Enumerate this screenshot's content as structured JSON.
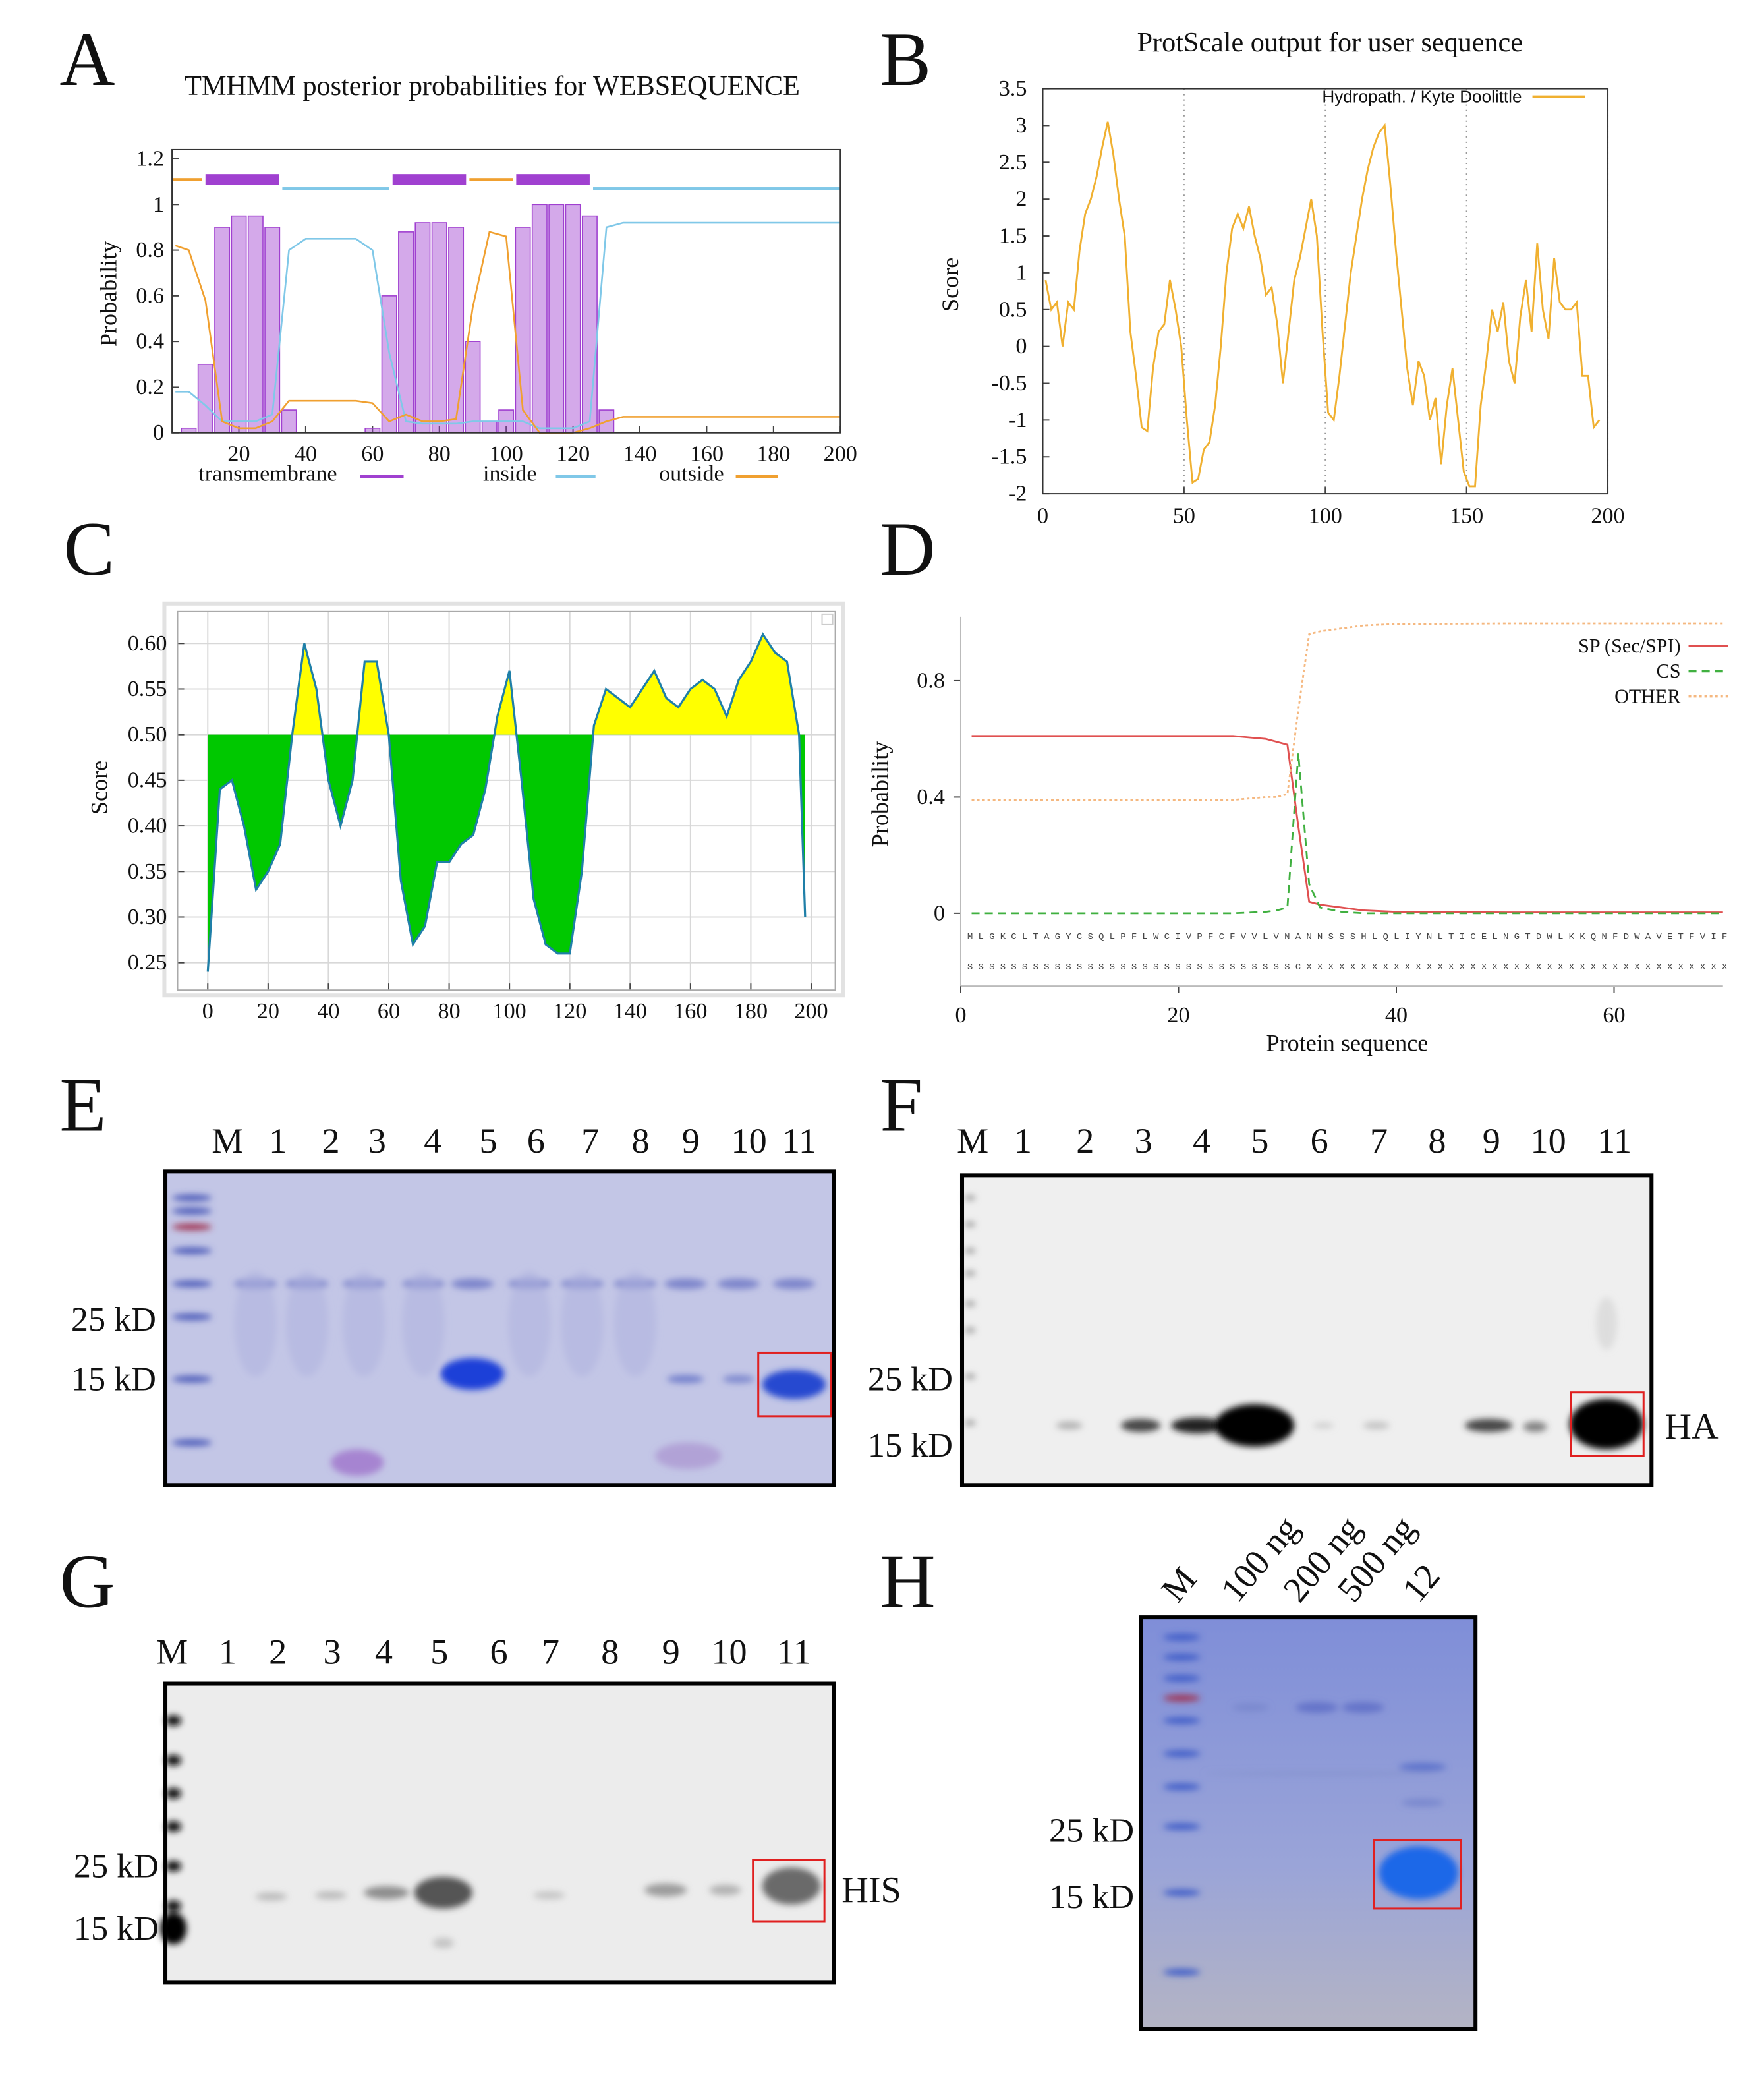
{
  "panel_labels": [
    "A",
    "B",
    "C",
    "D",
    "E",
    "F",
    "G",
    "H"
  ],
  "chart_data": [
    {
      "type": "combo",
      "title": "TMHMM posterior probabilities for WEBSEQUENCE",
      "ylabel": "Probability",
      "x": [
        1,
        5,
        10,
        15,
        20,
        25,
        30,
        35,
        40,
        45,
        50,
        55,
        60,
        65,
        70,
        75,
        80,
        85,
        90,
        95,
        100,
        105,
        110,
        115,
        120,
        125,
        130,
        135,
        140,
        145,
        150,
        155,
        160,
        165,
        170,
        175,
        180,
        185,
        190,
        195,
        200
      ],
      "xlim": [
        0,
        200
      ],
      "ylim": [
        0,
        1.2
      ],
      "xticks": [
        20,
        40,
        60,
        80,
        100,
        120,
        140,
        160,
        180,
        200
      ],
      "yticks": [
        0,
        0.2,
        0.4,
        0.6,
        0.8,
        1,
        1.2
      ],
      "grid": false,
      "legend": "bottom",
      "series": [
        {
          "name": "transmembrane",
          "type": "bar",
          "color": "#a040d0",
          "values": [
            0,
            0.02,
            0.3,
            0.9,
            0.95,
            0.95,
            0.9,
            0.1,
            0,
            0,
            0,
            0,
            0.02,
            0.6,
            0.88,
            0.92,
            0.92,
            0.9,
            0.4,
            0.05,
            0.1,
            0.9,
            1,
            1,
            1,
            0.95,
            0.1,
            0,
            0,
            0,
            0,
            0,
            0,
            0,
            0,
            0,
            0,
            0,
            0,
            0,
            0
          ]
        },
        {
          "name": "inside",
          "type": "line",
          "color": "#80c8e8",
          "values": [
            0.18,
            0.18,
            0.12,
            0.05,
            0.05,
            0.05,
            0.08,
            0.8,
            0.85,
            0.85,
            0.85,
            0.85,
            0.8,
            0.35,
            0.05,
            0.04,
            0.04,
            0.04,
            0.05,
            0.05,
            0.05,
            0.05,
            0.02,
            0.02,
            0.02,
            0.05,
            0.9,
            0.92,
            0.92,
            0.92,
            0.92,
            0.92,
            0.92,
            0.92,
            0.92,
            0.92,
            0.92,
            0.92,
            0.92,
            0.92,
            0.92
          ]
        },
        {
          "name": "outside",
          "type": "line",
          "color": "#f0a030",
          "values": [
            0.82,
            0.8,
            0.58,
            0.05,
            0.02,
            0.02,
            0.05,
            0.14,
            0.14,
            0.14,
            0.14,
            0.14,
            0.13,
            0.05,
            0.08,
            0.05,
            0.05,
            0.06,
            0.55,
            0.88,
            0.86,
            0.1,
            0,
            0,
            0,
            0.02,
            0.05,
            0.07,
            0.07,
            0.07,
            0.07,
            0.07,
            0.07,
            0.07,
            0.07,
            0.07,
            0.07,
            0.07,
            0.07,
            0.07,
            0.07
          ]
        }
      ],
      "topology": [
        {
          "series": 2,
          "start": 0,
          "end": 9,
          "y": 1.11
        },
        {
          "series": 0,
          "start": 10,
          "end": 32,
          "y": 1.11
        },
        {
          "series": 1,
          "start": 33,
          "end": 65,
          "y": 1.07
        },
        {
          "series": 0,
          "start": 66,
          "end": 88,
          "y": 1.11
        },
        {
          "series": 2,
          "start": 89,
          "end": 102,
          "y": 1.11
        },
        {
          "series": 0,
          "start": 103,
          "end": 125,
          "y": 1.11
        },
        {
          "series": 1,
          "start": 126,
          "end": 200,
          "y": 1.07
        }
      ]
    },
    {
      "type": "line",
      "title": "ProtScale output for user sequence",
      "ylabel": "Score",
      "x": [
        1,
        3,
        5,
        7,
        9,
        11,
        13,
        15,
        17,
        19,
        21,
        23,
        25,
        27,
        29,
        31,
        33,
        35,
        37,
        39,
        41,
        43,
        45,
        47,
        49,
        51,
        53,
        55,
        57,
        59,
        61,
        63,
        65,
        67,
        69,
        71,
        73,
        75,
        77,
        79,
        81,
        83,
        85,
        87,
        89,
        91,
        93,
        95,
        97,
        99,
        101,
        103,
        105,
        107,
        109,
        111,
        113,
        115,
        117,
        119,
        121,
        123,
        125,
        127,
        129,
        131,
        133,
        135,
        137,
        139,
        141,
        143,
        145,
        147,
        149,
        151,
        153,
        155,
        157,
        159,
        161,
        163,
        165,
        167,
        169,
        171,
        173,
        175,
        177,
        179,
        181,
        183,
        185,
        187,
        189,
        191,
        193,
        195,
        197
      ],
      "xlim": [
        0,
        200
      ],
      "ylim": [
        -2,
        3.5
      ],
      "xticks": [
        0,
        50,
        100,
        150,
        200
      ],
      "yticks": [
        -2,
        -1.5,
        -1,
        -0.5,
        0,
        0.5,
        1,
        1.5,
        2,
        2.5,
        3,
        3.5
      ],
      "grid": "x",
      "legend": "top-right",
      "series": [
        {
          "name": "Hydropath. / Kyte  Doolittle",
          "color": "#f0b030",
          "values": [
            0.9,
            0.5,
            0.6,
            0.0,
            0.6,
            0.5,
            1.3,
            1.8,
            2.0,
            2.3,
            2.7,
            3.05,
            2.6,
            2.0,
            1.5,
            0.2,
            -0.4,
            -1.1,
            -1.15,
            -0.3,
            0.2,
            0.3,
            0.9,
            0.5,
            0.0,
            -1.0,
            -1.85,
            -1.8,
            -1.4,
            -1.3,
            -0.8,
            0,
            1.0,
            1.6,
            1.8,
            1.6,
            1.9,
            1.5,
            1.2,
            0.7,
            0.8,
            0.3,
            -0.5,
            0.2,
            0.9,
            1.2,
            1.6,
            2.0,
            1.5,
            0.2,
            -0.9,
            -1.0,
            -0.4,
            0.3,
            1.0,
            1.5,
            2.0,
            2.4,
            2.7,
            2.9,
            3.0,
            2.2,
            1.3,
            0.5,
            -0.3,
            -0.8,
            -0.2,
            -0.4,
            -1.0,
            -0.7,
            -1.6,
            -0.8,
            -0.3,
            -1.0,
            -1.7,
            -1.9,
            -1.9,
            -0.8,
            -0.2,
            0.5,
            0.2,
            0.6,
            -0.2,
            -0.5,
            0.4,
            0.9,
            0.2,
            1.4,
            0.5,
            0.1,
            1.2,
            0.6,
            0.5,
            0.5,
            0.6,
            -0.4,
            -0.4,
            -1.1,
            -1.0
          ]
        }
      ]
    },
    {
      "type": "area",
      "ylabel": "Score",
      "x": [
        0,
        4,
        8,
        12,
        16,
        20,
        24,
        28,
        32,
        36,
        40,
        44,
        48,
        52,
        56,
        60,
        64,
        68,
        72,
        76,
        80,
        84,
        88,
        92,
        96,
        100,
        104,
        108,
        112,
        116,
        120,
        124,
        128,
        132,
        136,
        140,
        144,
        148,
        152,
        156,
        160,
        164,
        168,
        172,
        176,
        180,
        184,
        188,
        192,
        196,
        198
      ],
      "values": [
        0.24,
        0.44,
        0.45,
        0.4,
        0.33,
        0.35,
        0.38,
        0.5,
        0.6,
        0.55,
        0.45,
        0.4,
        0.45,
        0.58,
        0.58,
        0.5,
        0.34,
        0.27,
        0.29,
        0.36,
        0.36,
        0.38,
        0.39,
        0.44,
        0.52,
        0.57,
        0.45,
        0.32,
        0.27,
        0.26,
        0.26,
        0.35,
        0.51,
        0.55,
        0.54,
        0.53,
        0.55,
        0.57,
        0.54,
        0.53,
        0.55,
        0.56,
        0.55,
        0.52,
        0.56,
        0.58,
        0.61,
        0.59,
        0.58,
        0.5,
        0.3
      ],
      "threshold": 0.5,
      "color": "#1f7fa8",
      "above_color": "#ffff00",
      "below_color": "#00c800",
      "xlim": [
        -10,
        208
      ],
      "ylim": [
        0.22,
        0.635
      ],
      "xticks": [
        0,
        20,
        40,
        60,
        80,
        100,
        120,
        140,
        160,
        180,
        200
      ],
      "yticks": [
        0.25,
        {
          "value": 0.3,
          "label": "0.30"
        },
        0.35,
        {
          "value": 0.4,
          "label": "0.40"
        },
        0.45,
        {
          "value": 0.5,
          "label": "0.50"
        },
        0.55,
        {
          "value": 0.6,
          "label": "0.60"
        }
      ],
      "grid": true
    },
    {
      "type": "line",
      "xlabel": "Protein sequence",
      "ylabel": "Probability",
      "x": [
        1,
        5,
        10,
        15,
        20,
        25,
        28,
        29,
        30,
        31,
        32,
        33,
        35,
        37,
        40,
        50,
        60,
        70
      ],
      "xlim": [
        0,
        70
      ],
      "ylim": [
        -0.25,
        1.02
      ],
      "xticks": [
        0,
        20,
        40,
        60
      ],
      "yticks": [
        0,
        0.4,
        0.8
      ],
      "grid": false,
      "legend": "top-right",
      "series": [
        {
          "name": "SP (Sec/SPI)",
          "color": "#e05050",
          "dash": "solid",
          "values": [
            0.61,
            0.61,
            0.61,
            0.61,
            0.61,
            0.61,
            0.6,
            0.59,
            0.58,
            0.3,
            0.04,
            0.03,
            0.02,
            0.01,
            0.005,
            0.003,
            0.003,
            0.003
          ]
        },
        {
          "name": "CS",
          "color": "#40b040",
          "dash": "dashed",
          "values": [
            0,
            0,
            0,
            0,
            0,
            0,
            0.005,
            0.01,
            0.02,
            0.55,
            0.1,
            0.02,
            0.005,
            0,
            0,
            0,
            0,
            0
          ]
        },
        {
          "name": "OTHER",
          "color": "#f5b880",
          "dash": "dotted",
          "values": [
            0.39,
            0.39,
            0.39,
            0.39,
            0.39,
            0.39,
            0.4,
            0.4,
            0.41,
            0.7,
            0.96,
            0.97,
            0.98,
            0.99,
            0.995,
            0.997,
            0.997,
            0.997
          ]
        }
      ],
      "sequence": "MLGKCLTAGYCSQLPFLWCIVPFCFVVLVNANNSSSHLQLIYNLTICELNGTDWLKKQNFDWAVETFVIF",
      "annotation": "SSSSSSSSSSSSSSSSSSSSSSSSSSSSSSCXXXXXXXXXXXXXXXXXXXXXXXXXXXXXXXXXXXXXXX"
    }
  ],
  "gels": [
    {
      "lanes": [
        "M",
        "1",
        "2",
        "3",
        "4",
        "5",
        "6",
        "7",
        "8",
        "9",
        "10",
        "11"
      ],
      "markers": [
        "25 kD",
        "15 kD"
      ]
    },
    {
      "lanes": [
        "M",
        "1",
        "2",
        "3",
        "4",
        "5",
        "6",
        "7",
        "8",
        "9",
        "10",
        "11"
      ],
      "markers": [
        "25 kD",
        "15 kD"
      ],
      "tag": "HA"
    },
    {
      "lanes": [
        "M",
        "1",
        "2",
        "3",
        "4",
        "5",
        "6",
        "7",
        "8",
        "9",
        "10",
        "11"
      ],
      "markers": [
        "25 kD",
        "15 kD"
      ],
      "tag": "HIS"
    },
    {
      "lanes": [
        "M",
        "100 ng",
        "200 ng",
        "500 ng",
        "12"
      ],
      "markers": [
        "25 kD",
        "15 kD"
      ]
    }
  ]
}
